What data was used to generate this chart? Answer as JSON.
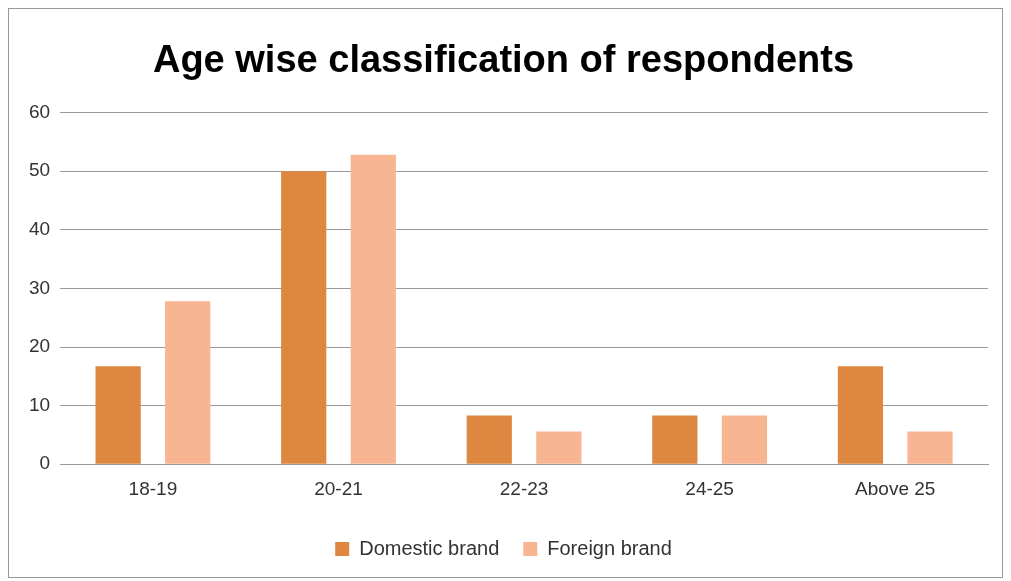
{
  "chart_data": {
    "type": "bar",
    "title": "Age wise classification of respondents",
    "categories": [
      "18-19",
      "20-21",
      "22-23",
      "24-25",
      "Above 25"
    ],
    "series": [
      {
        "name": "Domestic brand",
        "color": "#de8741",
        "values": [
          16.7,
          50,
          8.3,
          8.3,
          16.7
        ]
      },
      {
        "name": "Foreign brand",
        "color": "#f8b592",
        "values": [
          27.8,
          52.8,
          5.6,
          8.3,
          5.6
        ]
      }
    ],
    "ylim": [
      0,
      60
    ],
    "yticks": [
      0,
      10,
      20,
      30,
      40,
      50,
      60
    ],
    "grid": "y",
    "legend": "bottom"
  }
}
